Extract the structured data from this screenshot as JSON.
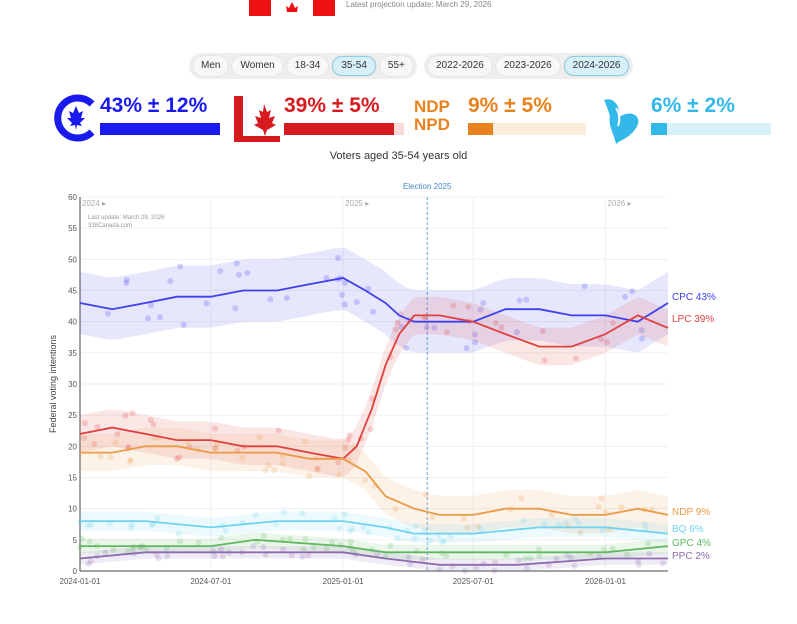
{
  "top": {
    "update": "Latest projection update: March 29, 2026"
  },
  "filters": {
    "demographics": [
      "Men",
      "Women",
      "18-34",
      "35-54",
      "55+"
    ],
    "demographic_active": "35-54",
    "periods": [
      "2022-2026",
      "2023-2026",
      "2024-2026"
    ],
    "period_active": "2024-2026"
  },
  "parties": [
    {
      "key": "cpc",
      "text": "43% ± 12%",
      "value": 43,
      "color": "#1a1aee",
      "bg": "#dcdcfb"
    },
    {
      "key": "lpc",
      "text": "39% ± 5%",
      "value": 39,
      "color": "#d71920",
      "bg": "#fad9da"
    },
    {
      "key": "ndp",
      "text": "9% ± 5%",
      "value": 9,
      "color": "#e8821e",
      "bg": "#fbecdc",
      "logo_top": "NDP",
      "logo_bottom": "NPD"
    },
    {
      "key": "bq",
      "text": "6% ± 2%",
      "value": 6,
      "color": "#33b8ea",
      "bg": "#d8f1fb"
    }
  ],
  "subtitle": "Voters aged 35-54 years old",
  "chart_data": {
    "type": "line",
    "ylabel": "Federal voting intentions",
    "ylim": [
      0,
      60
    ],
    "yticks": [
      0,
      5,
      10,
      15,
      20,
      25,
      30,
      35,
      40,
      45,
      50,
      55,
      60
    ],
    "xlim": [
      "2024-01-01",
      "2026-03-29"
    ],
    "xticks": [
      "2024-01-01",
      "2024-07-01",
      "2025-01-01",
      "2025-07-01",
      "2026-01-01"
    ],
    "year_labels": [
      "2024",
      "2025",
      "2026"
    ],
    "event": {
      "date": "2025-04-28",
      "label": "Election 2025"
    },
    "annotation_update": "Last update: March 29, 2026",
    "annotation_source": "338Canada.com",
    "series": [
      {
        "name": "CPC",
        "end_label": "CPC 43%",
        "color": "#4040ee",
        "points": [
          [
            "2024-01-01",
            43
          ],
          [
            "2024-02-15",
            42
          ],
          [
            "2024-04-01",
            43
          ],
          [
            "2024-05-15",
            44
          ],
          [
            "2024-07-01",
            44
          ],
          [
            "2024-08-15",
            45
          ],
          [
            "2024-10-01",
            45
          ],
          [
            "2024-11-15",
            46
          ],
          [
            "2025-01-01",
            47
          ],
          [
            "2025-02-01",
            45
          ],
          [
            "2025-03-01",
            43
          ],
          [
            "2025-03-20",
            41
          ],
          [
            "2025-04-10",
            40
          ],
          [
            "2025-05-15",
            40
          ],
          [
            "2025-07-01",
            40
          ],
          [
            "2025-08-15",
            42
          ],
          [
            "2025-10-01",
            42
          ],
          [
            "2025-11-15",
            41
          ],
          [
            "2026-01-01",
            41
          ],
          [
            "2026-02-15",
            40
          ],
          [
            "2026-03-29",
            43
          ]
        ]
      },
      {
        "name": "LPC",
        "end_label": "LPC 39%",
        "color": "#e04040",
        "points": [
          [
            "2024-01-01",
            22
          ],
          [
            "2024-02-15",
            23
          ],
          [
            "2024-04-01",
            22
          ],
          [
            "2024-05-15",
            21
          ],
          [
            "2024-07-01",
            21
          ],
          [
            "2024-08-15",
            20
          ],
          [
            "2024-10-01",
            20
          ],
          [
            "2024-11-15",
            19
          ],
          [
            "2025-01-01",
            18
          ],
          [
            "2025-01-20",
            20
          ],
          [
            "2025-02-10",
            26
          ],
          [
            "2025-03-01",
            33
          ],
          [
            "2025-03-20",
            38
          ],
          [
            "2025-04-10",
            41
          ],
          [
            "2025-05-15",
            41
          ],
          [
            "2025-07-01",
            40
          ],
          [
            "2025-08-15",
            38
          ],
          [
            "2025-10-01",
            36
          ],
          [
            "2025-11-15",
            36
          ],
          [
            "2026-01-01",
            38
          ],
          [
            "2026-02-15",
            41
          ],
          [
            "2026-03-29",
            39
          ]
        ]
      },
      {
        "name": "NDP",
        "end_label": "NDP 9%",
        "color": "#eb9a45",
        "points": [
          [
            "2024-01-01",
            19
          ],
          [
            "2024-02-15",
            19
          ],
          [
            "2024-04-01",
            20
          ],
          [
            "2024-05-15",
            20
          ],
          [
            "2024-07-01",
            19
          ],
          [
            "2024-08-15",
            19
          ],
          [
            "2024-10-01",
            19
          ],
          [
            "2024-11-15",
            18
          ],
          [
            "2025-01-01",
            18
          ],
          [
            "2025-02-01",
            16
          ],
          [
            "2025-03-01",
            12
          ],
          [
            "2025-04-10",
            10
          ],
          [
            "2025-05-15",
            9
          ],
          [
            "2025-07-01",
            9
          ],
          [
            "2025-08-15",
            10
          ],
          [
            "2025-10-01",
            10
          ],
          [
            "2025-11-15",
            9
          ],
          [
            "2026-01-01",
            9
          ],
          [
            "2026-02-15",
            10
          ],
          [
            "2026-03-29",
            9
          ]
        ]
      },
      {
        "name": "BQ",
        "end_label": "BQ 6%",
        "color": "#6fd3f0",
        "points": [
          [
            "2024-01-01",
            8
          ],
          [
            "2024-04-01",
            8
          ],
          [
            "2024-07-01",
            7
          ],
          [
            "2024-10-01",
            8
          ],
          [
            "2025-01-01",
            8
          ],
          [
            "2025-03-01",
            7
          ],
          [
            "2025-04-10",
            6
          ],
          [
            "2025-07-01",
            6
          ],
          [
            "2025-10-01",
            7
          ],
          [
            "2026-01-01",
            7
          ],
          [
            "2026-03-29",
            6
          ]
        ]
      },
      {
        "name": "GPC",
        "end_label": "GPC 4%",
        "color": "#5fb860",
        "points": [
          [
            "2024-01-01",
            4
          ],
          [
            "2024-04-01",
            4
          ],
          [
            "2024-07-01",
            4
          ],
          [
            "2024-09-01",
            5
          ],
          [
            "2025-01-01",
            4
          ],
          [
            "2025-03-01",
            3
          ],
          [
            "2025-05-15",
            3
          ],
          [
            "2025-09-01",
            3
          ],
          [
            "2026-01-01",
            3
          ],
          [
            "2026-03-29",
            4
          ]
        ]
      },
      {
        "name": "PPC",
        "end_label": "PPC 2%",
        "color": "#8e6bb0",
        "points": [
          [
            "2024-01-01",
            2
          ],
          [
            "2024-04-01",
            3
          ],
          [
            "2024-07-01",
            3
          ],
          [
            "2024-10-01",
            3
          ],
          [
            "2025-01-01",
            3
          ],
          [
            "2025-03-01",
            2
          ],
          [
            "2025-05-15",
            1
          ],
          [
            "2025-09-01",
            1
          ],
          [
            "2026-01-01",
            2
          ],
          [
            "2026-03-29",
            2
          ]
        ]
      }
    ]
  }
}
